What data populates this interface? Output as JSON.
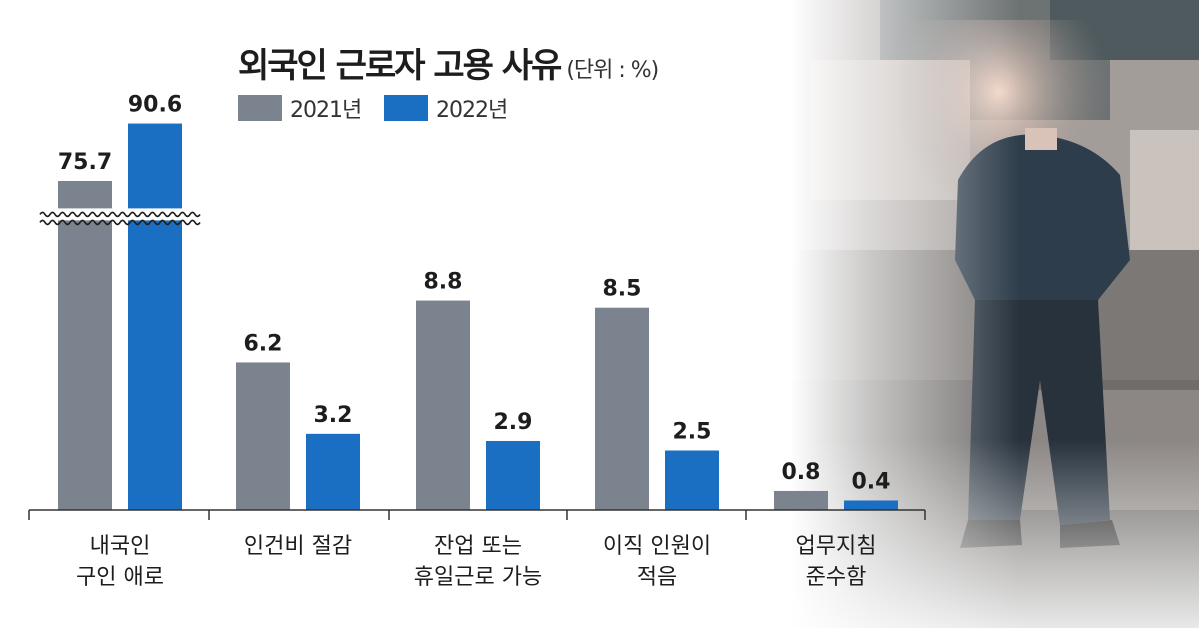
{
  "title": "외국인 근로자 고용 사유",
  "unit": "(단위 : %)",
  "colors": {
    "y2021": "#7b838e",
    "y2022": "#1a6fc2",
    "axis": "#333333"
  },
  "chart_data": {
    "type": "bar",
    "title": "외국인 근로자 고용 사유",
    "unit": "(단위 : %)",
    "categories": [
      [
        "내국인",
        "구인 애로"
      ],
      [
        "인건비 절감"
      ],
      [
        "잔업 또는",
        "휴일근로 가능"
      ],
      [
        "이직 인원이",
        "적음"
      ],
      [
        "업무지침",
        "준수함"
      ]
    ],
    "series": [
      {
        "name": "2021년",
        "color": "#7b838e",
        "values": [
          75.7,
          6.2,
          8.8,
          8.5,
          0.8
        ],
        "labels": [
          "75.7",
          "6.2",
          "8.8",
          "8.5",
          "0.8"
        ]
      },
      {
        "name": "2022년",
        "color": "#1a6fc2",
        "values": [
          90.6,
          3.2,
          2.9,
          2.5,
          0.4
        ],
        "labels": [
          "90.6",
          "3.2",
          "2.9",
          "2.5",
          "0.4"
        ]
      }
    ],
    "axis_break": true,
    "grid": false,
    "legend_position": "top"
  }
}
